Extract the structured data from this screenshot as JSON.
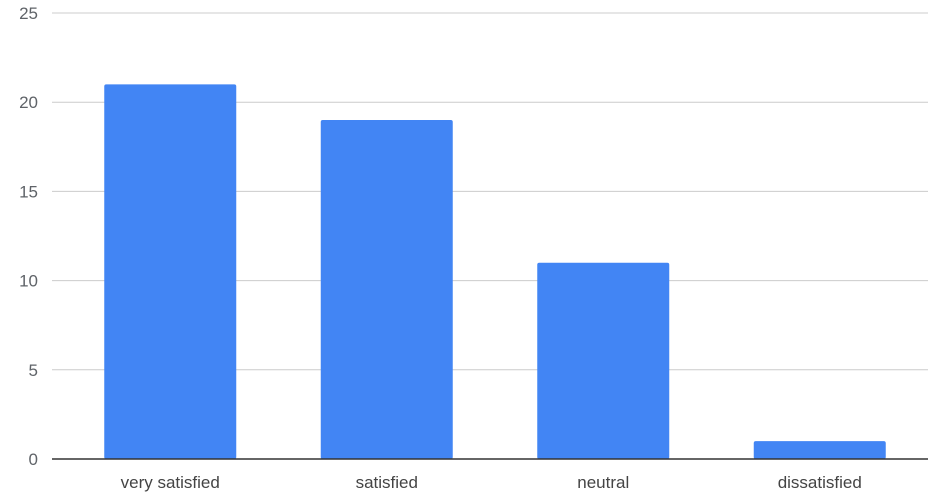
{
  "chart_data": {
    "type": "bar",
    "categories": [
      "very satisfied",
      "satisfied",
      "neutral",
      "dissatisfied"
    ],
    "values": [
      21,
      19,
      11,
      1
    ],
    "title": "",
    "xlabel": "",
    "ylabel": "",
    "ylim": [
      0,
      25
    ],
    "yticks": [
      0,
      5,
      10,
      15,
      20,
      25
    ],
    "grid": true,
    "legend": "none",
    "bar_color": "#4285f4",
    "gridline_color": "#cccccc",
    "axis_color": "#333333"
  }
}
